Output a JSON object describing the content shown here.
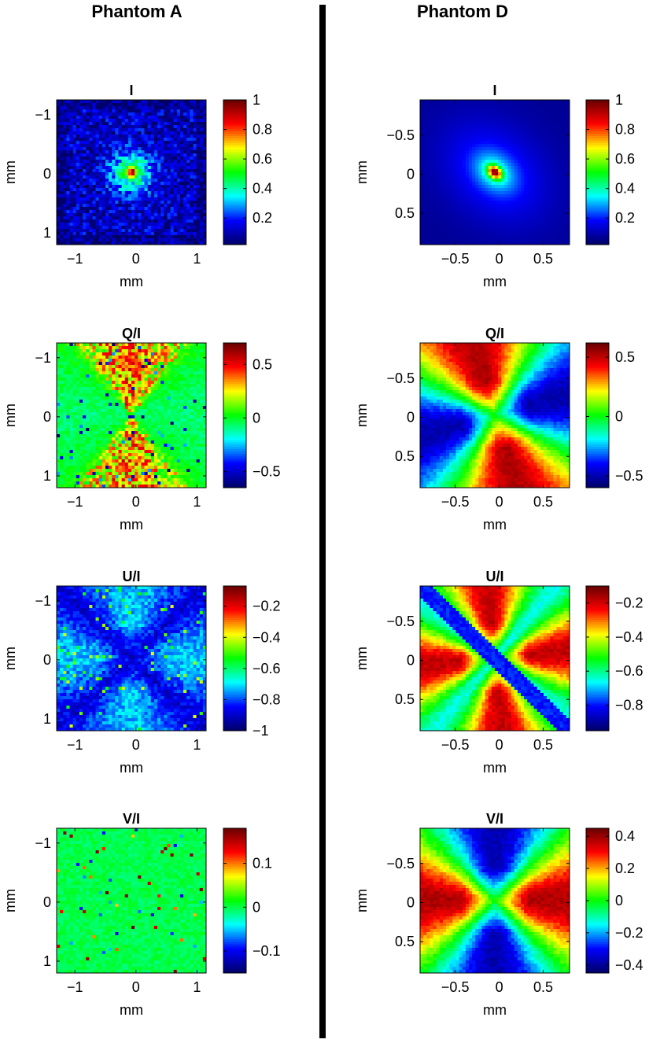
{
  "columns": [
    {
      "title": "Phantom A"
    },
    {
      "title": "Phantom D"
    }
  ],
  "colormap": [
    "#000066",
    "#0000ff",
    "#00ffff",
    "#00ff00",
    "#ffff00",
    "#ff0000",
    "#660000"
  ],
  "chart_data": [
    {
      "type": "heatmap",
      "title": "I",
      "column": 0,
      "pattern": "spot-noisy",
      "xlabel": "mm",
      "ylabel": "mm",
      "xlim": [
        -1.3,
        1.15
      ],
      "ylim": [
        -1.25,
        1.2
      ],
      "y_inverted": true,
      "xticks": [
        -1,
        0,
        1
      ],
      "xtick_labels": [
        "−1",
        "0",
        "1"
      ],
      "yticks": [
        -1,
        0,
        1
      ],
      "ytick_labels": [
        "−1",
        "0",
        "1"
      ],
      "clim": [
        0.02,
        1.0
      ],
      "cbar_ticks": [
        0.2,
        0.4,
        0.6,
        0.8,
        1
      ],
      "cbar_tick_labels": [
        "0.2",
        "0.4",
        "0.6",
        "0.8",
        "1"
      ]
    },
    {
      "type": "heatmap",
      "title": "Q/I",
      "column": 0,
      "pattern": "quad-noisy",
      "xlabel": "mm",
      "ylabel": "mm",
      "xlim": [
        -1.3,
        1.15
      ],
      "ylim": [
        -1.25,
        1.2
      ],
      "y_inverted": true,
      "xticks": [
        -1,
        0,
        1
      ],
      "xtick_labels": [
        "−1",
        "0",
        "1"
      ],
      "yticks": [
        -1,
        0,
        1
      ],
      "ytick_labels": [
        "−1",
        "0",
        "1"
      ],
      "clim": [
        -0.65,
        0.7
      ],
      "cbar_ticks": [
        -0.5,
        0,
        0.5
      ],
      "cbar_tick_labels": [
        "−0.5",
        "0",
        "0.5"
      ]
    },
    {
      "type": "heatmap",
      "title": "U/I",
      "column": 0,
      "pattern": "x-dark-noisy",
      "xlabel": "mm",
      "ylabel": "mm",
      "xlim": [
        -1.3,
        1.15
      ],
      "ylim": [
        -1.25,
        1.2
      ],
      "y_inverted": true,
      "xticks": [
        -1,
        0,
        1
      ],
      "xtick_labels": [
        "−1",
        "0",
        "1"
      ],
      "yticks": [
        -1,
        0,
        1
      ],
      "ytick_labels": [
        "−1",
        "0",
        "1"
      ],
      "clim": [
        -1.0,
        -0.07
      ],
      "cbar_ticks": [
        -1,
        -0.8,
        -0.6,
        -0.4,
        -0.2
      ],
      "cbar_tick_labels": [
        "−1",
        "−0.8",
        "−0.6",
        "−0.4",
        "−0.2"
      ]
    },
    {
      "type": "heatmap",
      "title": "V/I",
      "column": 0,
      "pattern": "flat-noisy",
      "xlabel": "mm",
      "ylabel": "mm",
      "xlim": [
        -1.3,
        1.15
      ],
      "ylim": [
        -1.25,
        1.2
      ],
      "y_inverted": true,
      "xticks": [
        -1,
        0,
        1
      ],
      "xtick_labels": [
        "−1",
        "0",
        "1"
      ],
      "yticks": [
        -1,
        0,
        1
      ],
      "ytick_labels": [
        "−1",
        "0",
        "1"
      ],
      "clim": [
        -0.15,
        0.18
      ],
      "cbar_ticks": [
        -0.1,
        0,
        0.1
      ],
      "cbar_tick_labels": [
        "−0.1",
        "0",
        "0.1"
      ]
    },
    {
      "type": "heatmap",
      "title": "I",
      "column": 1,
      "pattern": "spot-smooth",
      "xlabel": "mm",
      "ylabel": "mm",
      "xlim": [
        -0.9,
        0.8
      ],
      "ylim": [
        -0.95,
        0.9
      ],
      "y_inverted": true,
      "xticks": [
        -0.5,
        0,
        0.5
      ],
      "xtick_labels": [
        "−0.5",
        "0",
        "0.5"
      ],
      "yticks": [
        -0.5,
        0,
        0.5
      ],
      "ytick_labels": [
        "−0.5",
        "0",
        "0.5"
      ],
      "clim": [
        0.02,
        1.0
      ],
      "cbar_ticks": [
        0.2,
        0.4,
        0.6,
        0.8,
        1
      ],
      "cbar_tick_labels": [
        "0.2",
        "0.4",
        "0.6",
        "0.8",
        "1"
      ]
    },
    {
      "type": "heatmap",
      "title": "Q/I",
      "column": 1,
      "pattern": "quad-smooth",
      "xlabel": "mm",
      "ylabel": "mm",
      "xlim": [
        -0.9,
        0.8
      ],
      "ylim": [
        -0.95,
        0.9
      ],
      "y_inverted": true,
      "xticks": [
        -0.5,
        0,
        0.5
      ],
      "xtick_labels": [
        "−0.5",
        "0",
        "0.5"
      ],
      "yticks": [
        -0.5,
        0,
        0.5
      ],
      "ytick_labels": [
        "−0.5",
        "0",
        "0.5"
      ],
      "clim": [
        -0.6,
        0.62
      ],
      "cbar_ticks": [
        -0.5,
        0,
        0.5
      ],
      "cbar_tick_labels": [
        "−0.5",
        "0",
        "0.5"
      ]
    },
    {
      "type": "heatmap",
      "title": "U/I",
      "column": 1,
      "pattern": "x-smooth",
      "xlabel": "mm",
      "ylabel": "mm",
      "xlim": [
        -0.9,
        0.8
      ],
      "ylim": [
        -0.95,
        0.9
      ],
      "y_inverted": true,
      "xticks": [
        -0.5,
        0,
        0.5
      ],
      "xtick_labels": [
        "−0.5",
        "0",
        "0.5"
      ],
      "yticks": [
        -0.5,
        0,
        0.5
      ],
      "ytick_labels": [
        "−0.5",
        "0",
        "0.5"
      ],
      "clim": [
        -0.95,
        -0.1
      ],
      "cbar_ticks": [
        -0.8,
        -0.6,
        -0.4,
        -0.2
      ],
      "cbar_tick_labels": [
        "−0.8",
        "−0.6",
        "−0.4",
        "−0.2"
      ]
    },
    {
      "type": "heatmap",
      "title": "V/I",
      "column": 1,
      "pattern": "lr-smooth",
      "xlabel": "mm",
      "ylabel": "mm",
      "xlim": [
        -0.9,
        0.8
      ],
      "ylim": [
        -0.95,
        0.9
      ],
      "y_inverted": true,
      "xticks": [
        -0.5,
        0,
        0.5
      ],
      "xtick_labels": [
        "−0.5",
        "0",
        "0.5"
      ],
      "yticks": [
        -0.5,
        0,
        0.5
      ],
      "ytick_labels": [
        "−0.5",
        "0",
        "0.5"
      ],
      "clim": [
        -0.45,
        0.45
      ],
      "cbar_ticks": [
        -0.4,
        -0.2,
        0,
        0.2,
        0.4
      ],
      "cbar_tick_labels": [
        "−0.4",
        "−0.2",
        "0",
        "0.2",
        "0.4"
      ]
    }
  ]
}
